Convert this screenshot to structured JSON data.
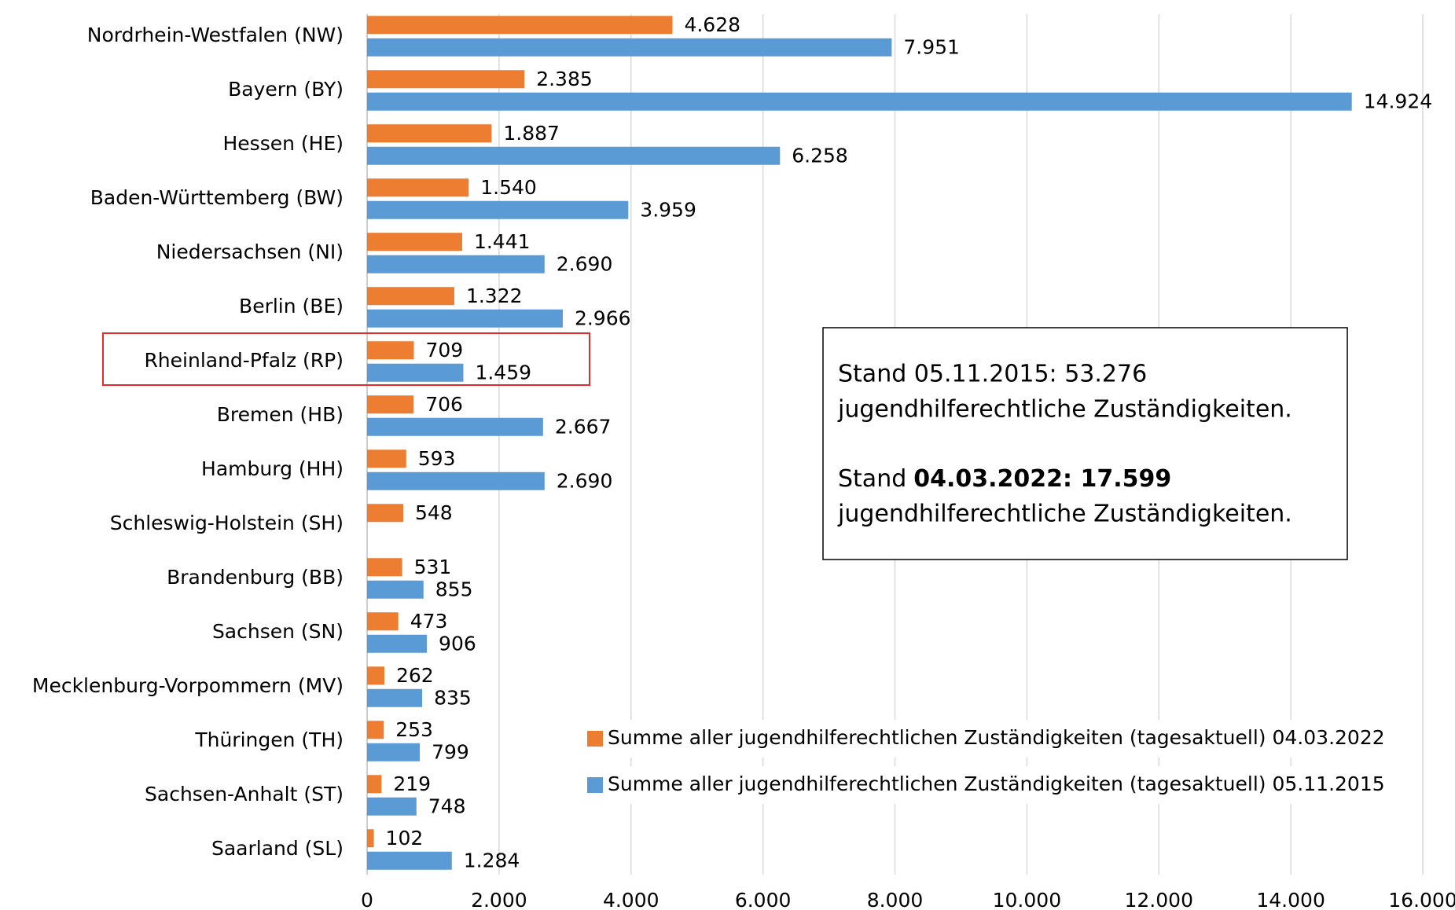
{
  "chart_data": {
    "type": "hbar",
    "categories": [
      "Nordrhein-Westfalen (NW)",
      "Bayern (BY)",
      "Hessen (HE)",
      "Baden-Württemberg (BW)",
      "Niedersachsen (NI)",
      "Berlin (BE)",
      "Rheinland-Pfalz (RP)",
      "Bremen (HB)",
      "Hamburg (HH)",
      "Schleswig-Holstein (SH)",
      "Brandenburg (BB)",
      "Sachsen (SN)",
      "Mecklenburg-Vorpommern (MV)",
      "Thüringen (TH)",
      "Sachsen-Anhalt (ST)",
      "Saarland (SL)"
    ],
    "series": [
      {
        "name": "Summe aller jugendhilferechtlichen Zuständigkeiten (tagesaktuell) 04.03.2022",
        "color": "#ed7d31",
        "values": [
          4628,
          2385,
          1887,
          1540,
          1441,
          1322,
          709,
          706,
          593,
          548,
          531,
          473,
          262,
          253,
          219,
          102
        ],
        "value_labels": [
          "4.628",
          "2.385",
          "1.887",
          "1.540",
          "1.441",
          "1.322",
          "709",
          "706",
          "593",
          "548",
          "531",
          "473",
          "262",
          "253",
          "219",
          "102"
        ]
      },
      {
        "name": "Summe aller jugendhilferechtlichen Zuständigkeiten (tagesaktuell) 05.11.2015",
        "color": "#5b9bd5",
        "values": [
          7951,
          14924,
          6258,
          3959,
          2690,
          2966,
          1459,
          2667,
          2690,
          null,
          855,
          906,
          835,
          799,
          748,
          1284
        ],
        "value_labels": [
          "7.951",
          "14.924",
          "6.258",
          "3.959",
          "2.690",
          "2.966",
          "1.459",
          "2.667",
          "2.690",
          null,
          "855",
          "906",
          "835",
          "799",
          "748",
          "1.284"
        ]
      }
    ],
    "xlim": [
      0,
      16000
    ],
    "xticks": [
      0,
      {
        "value": 2000,
        "label": "2.000"
      },
      {
        "value": 4000,
        "label": "4.000"
      },
      {
        "value": 6000,
        "label": "6.000"
      },
      {
        "value": 8000,
        "label": "8.000"
      },
      {
        "value": 10000,
        "label": "10.000"
      },
      {
        "value": 12000,
        "label": "12.000"
      },
      {
        "value": 14000,
        "label": "14.000"
      },
      {
        "value": 16000,
        "label": "16.000"
      }
    ],
    "grid": true,
    "annotation": {
      "line1": "Stand 05.11.2015: 53.276",
      "line2": "jugendhilferechtliche Zuständigkeiten.",
      "line3a": "Stand",
      "line3b": "04.03.2022: 17.599",
      "line4": "jugendhilferechtliche Zuständigkeiten."
    }
  }
}
